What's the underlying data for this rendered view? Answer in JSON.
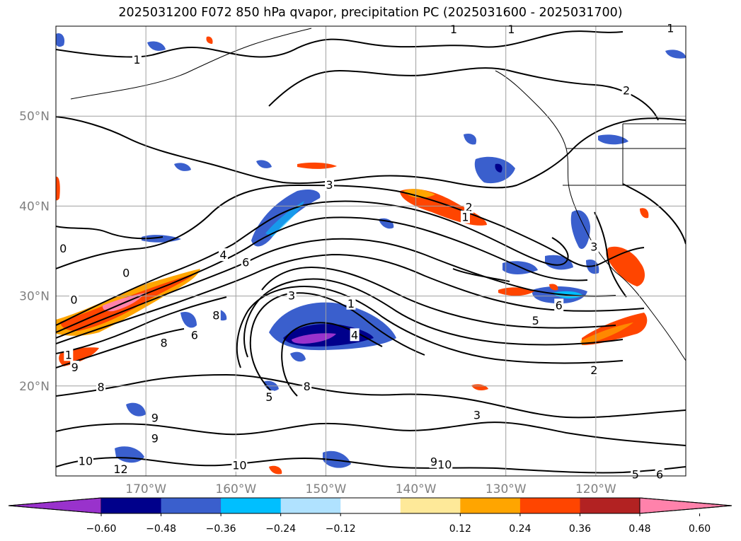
{
  "title": "2025031200 F072 850 hPa qvapor, precipitation PC (2025031600 - 2025031700)",
  "map": {
    "lon_range": [
      -180,
      -110
    ],
    "lat_range": [
      10,
      60
    ],
    "lon_ticks": [
      {
        "value": -170,
        "label": "170°W"
      },
      {
        "value": -160,
        "label": "160°W"
      },
      {
        "value": -150,
        "label": "150°W"
      },
      {
        "value": -140,
        "label": "140°W"
      },
      {
        "value": -130,
        "label": "130°W"
      },
      {
        "value": -120,
        "label": "120°W"
      }
    ],
    "lat_ticks": [
      {
        "value": 20,
        "label": "20°N"
      },
      {
        "value": 30,
        "label": "30°N"
      },
      {
        "value": 40,
        "label": "40°N"
      },
      {
        "value": 50,
        "label": "50°N"
      }
    ],
    "grid": true,
    "tick_label_color": "#808080"
  },
  "contour_labels": [
    {
      "text": "1",
      "lon": -171,
      "lat": 56.3
    },
    {
      "text": "1",
      "lon": -135.8,
      "lat": 59.7
    },
    {
      "text": "1",
      "lon": -129.4,
      "lat": 59.7
    },
    {
      "text": "1",
      "lon": -111.7,
      "lat": 59.8
    },
    {
      "text": "2",
      "lon": -116.6,
      "lat": 52.9
    },
    {
      "text": "3",
      "lon": -149.6,
      "lat": 42.4
    },
    {
      "text": "2",
      "lon": -134.1,
      "lat": 39.9
    },
    {
      "text": "1",
      "lon": -134.5,
      "lat": 38.8
    },
    {
      "text": "3",
      "lon": -120.2,
      "lat": 35.5
    },
    {
      "text": "0",
      "lon": -179.2,
      "lat": 35.3
    },
    {
      "text": "0",
      "lon": -172.2,
      "lat": 32.6
    },
    {
      "text": "4",
      "lon": -161.4,
      "lat": 34.6
    },
    {
      "text": "6",
      "lon": -158.9,
      "lat": 33.8
    },
    {
      "text": "0",
      "lon": -178.0,
      "lat": 29.6
    },
    {
      "text": "3",
      "lon": -153.8,
      "lat": 30.1
    },
    {
      "text": "1",
      "lon": -147.2,
      "lat": 29.2
    },
    {
      "text": "6",
      "lon": -124.1,
      "lat": 29.0
    },
    {
      "text": "5",
      "lon": -126.7,
      "lat": 27.3
    },
    {
      "text": "8",
      "lon": -162.2,
      "lat": 27.9
    },
    {
      "text": "6",
      "lon": -164.6,
      "lat": 25.7
    },
    {
      "text": "4",
      "lon": -146.8,
      "lat": 25.7
    },
    {
      "text": "8",
      "lon": -168.0,
      "lat": 24.8
    },
    {
      "text": "1",
      "lon": -178.6,
      "lat": 23.5
    },
    {
      "text": "9",
      "lon": -177.9,
      "lat": 22.1
    },
    {
      "text": "8",
      "lon": -175.0,
      "lat": 19.9
    },
    {
      "text": "2",
      "lon": -120.2,
      "lat": 21.8
    },
    {
      "text": "5",
      "lon": -156.3,
      "lat": 18.8
    },
    {
      "text": "8",
      "lon": -152.1,
      "lat": 20.0
    },
    {
      "text": "9",
      "lon": -169.0,
      "lat": 16.5
    },
    {
      "text": "3",
      "lon": -133.2,
      "lat": 16.8
    },
    {
      "text": "9",
      "lon": -169.0,
      "lat": 14.2
    },
    {
      "text": "10",
      "lon": -176.7,
      "lat": 11.7
    },
    {
      "text": "12",
      "lon": -172.8,
      "lat": 10.8
    },
    {
      "text": "10",
      "lon": -159.6,
      "lat": 11.2
    },
    {
      "text": "9",
      "lon": -138.0,
      "lat": 11.6
    },
    {
      "text": "10",
      "lon": -136.8,
      "lat": 11.3
    },
    {
      "text": "5",
      "lon": -115.6,
      "lat": 10.2
    },
    {
      "text": "6",
      "lon": -112.9,
      "lat": 10.2
    }
  ],
  "colorbar": {
    "ticks": [
      "−0.60",
      "−0.48",
      "−0.36",
      "−0.24",
      "−0.12",
      "0.12",
      "0.24",
      "0.36",
      "0.48",
      "0.60"
    ],
    "colors": [
      "#9932cc",
      "#00008b",
      "#3a5fcd",
      "#00bfff",
      "#b0e2ff",
      "#ffffff",
      "#fee999",
      "#ffa500",
      "#ff4500",
      "#b22222",
      "#ff82ab"
    ],
    "extend": "both"
  }
}
